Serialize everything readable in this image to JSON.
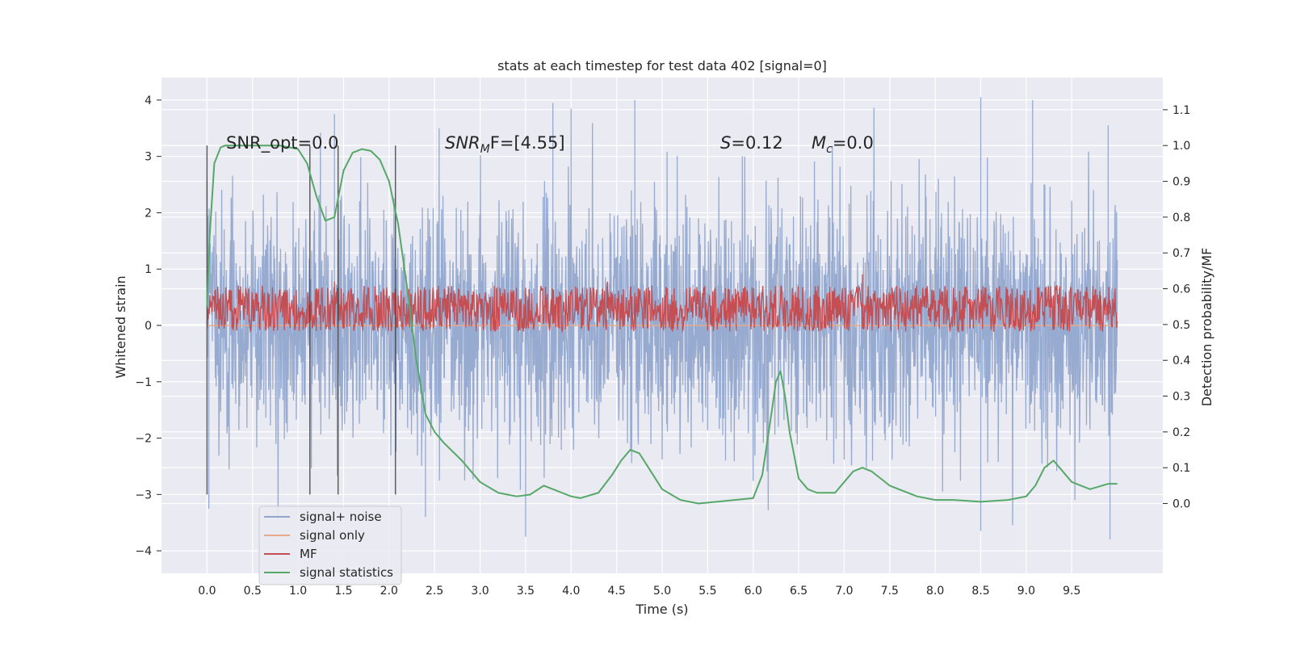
{
  "chart_data": {
    "type": "line",
    "title": "stats at each timestep for test data 402 [signal=0]",
    "xlabel": "Time (s)",
    "ylabel_left": "Whitened strain",
    "ylabel_right": "Detection probability/MF",
    "xlim": [
      -0.5,
      10.5
    ],
    "ylim_left": [
      -4.4,
      4.4
    ],
    "ylim_right": [
      -0.195,
      1.19
    ],
    "grid": true,
    "legend_position": "lower-left",
    "x_ticks": [
      "0.0",
      "0.5",
      "1.0",
      "1.5",
      "2.0",
      "2.5",
      "3.0",
      "3.5",
      "4.0",
      "4.5",
      "5.0",
      "5.5",
      "6.0",
      "6.5",
      "7.0",
      "7.5",
      "8.0",
      "8.5",
      "9.0",
      "9.5"
    ],
    "left_ticks": [
      "4",
      "3",
      "2",
      "1",
      "0",
      "−1",
      "−2",
      "−3",
      "−4"
    ],
    "right_ticks": [
      "1.1",
      "1.0",
      "0.9",
      "0.8",
      "0.7",
      "0.6",
      "0.5",
      "0.4",
      "0.3",
      "0.2",
      "0.1",
      "0.0"
    ],
    "annotations": {
      "snr_opt": "SNR_opt=0.0",
      "snr_mf_sym": "SNR",
      "snr_mf_sub": "M",
      "snr_mf_rest": "F=[4.55]",
      "s_sym": "S",
      "s_rest": "=0.12",
      "mc_sym": "M",
      "mc_sub": "c",
      "mc_rest": "=0.0"
    },
    "vertical_markers": [
      0.0,
      1.13,
      1.44,
      2.07
    ],
    "series": [
      {
        "name": "signal+ noise",
        "color": "#92a6cd",
        "axis": "left",
        "style": "dense noise",
        "x_range": [
          0.0,
          10.0
        ],
        "approx_range": [
          -3.8,
          4.05
        ],
        "peaks": [
          {
            "x": 1.4,
            "y": 3.75
          },
          {
            "x": 2.55,
            "y": 3.5
          },
          {
            "x": 3.8,
            "y": 3.95
          },
          {
            "x": 4.0,
            "y": 3.85
          },
          {
            "x": 4.7,
            "y": 4.0
          },
          {
            "x": 8.5,
            "y": 4.05
          },
          {
            "x": 9.07,
            "y": 4.0
          },
          {
            "x": 9.9,
            "y": 3.55
          }
        ],
        "troughs": [
          {
            "x": 0.02,
            "y": -3.25
          },
          {
            "x": 2.4,
            "y": -3.4
          },
          {
            "x": 3.5,
            "y": -3.75
          },
          {
            "x": 8.5,
            "y": -3.65
          },
          {
            "x": 9.92,
            "y": -3.8
          }
        ]
      },
      {
        "name": "signal only",
        "color": "#e8a98a",
        "axis": "left",
        "style": "flat",
        "value": 0.0
      },
      {
        "name": "MF",
        "color": "#c44e52",
        "axis": "right",
        "style": "noisy band",
        "x_range": [
          0.0,
          10.0
        ],
        "band": [
          0.48,
          0.61
        ],
        "spikes": [
          {
            "x": 7.2,
            "y": 0.64
          },
          {
            "x": 4.4,
            "y": 0.62
          },
          {
            "x": 1.4,
            "y": 0.62
          }
        ]
      },
      {
        "name": "signal statistics",
        "color": "#55a868",
        "axis": "right",
        "style": "smooth",
        "x": [
          0.0,
          0.03,
          0.08,
          0.15,
          0.2,
          0.3,
          0.5,
          0.8,
          1.0,
          1.1,
          1.2,
          1.3,
          1.4,
          1.5,
          1.6,
          1.7,
          1.8,
          1.9,
          2.0,
          2.1,
          2.2,
          2.3,
          2.4,
          2.5,
          2.6,
          2.8,
          3.0,
          3.2,
          3.4,
          3.55,
          3.7,
          3.8,
          3.9,
          4.0,
          4.1,
          4.3,
          4.45,
          4.55,
          4.65,
          4.75,
          4.85,
          5.0,
          5.2,
          5.4,
          5.6,
          5.8,
          6.0,
          6.1,
          6.2,
          6.25,
          6.3,
          6.35,
          6.4,
          6.5,
          6.6,
          6.7,
          6.9,
          7.0,
          7.1,
          7.2,
          7.3,
          7.5,
          7.8,
          8.0,
          8.2,
          8.5,
          8.8,
          9.0,
          9.1,
          9.2,
          9.3,
          9.5,
          9.7,
          9.9,
          10.0
        ],
        "y": [
          0.55,
          0.75,
          0.95,
          0.995,
          1.0,
          1.0,
          1.0,
          1.0,
          0.99,
          0.95,
          0.86,
          0.79,
          0.8,
          0.93,
          0.98,
          0.99,
          0.985,
          0.96,
          0.9,
          0.78,
          0.6,
          0.4,
          0.25,
          0.2,
          0.17,
          0.12,
          0.06,
          0.03,
          0.02,
          0.025,
          0.05,
          0.04,
          0.03,
          0.02,
          0.015,
          0.03,
          0.08,
          0.12,
          0.15,
          0.14,
          0.1,
          0.04,
          0.01,
          0.0,
          0.005,
          0.01,
          0.015,
          0.08,
          0.25,
          0.34,
          0.37,
          0.3,
          0.2,
          0.07,
          0.04,
          0.03,
          0.03,
          0.06,
          0.09,
          0.1,
          0.09,
          0.05,
          0.02,
          0.01,
          0.01,
          0.005,
          0.01,
          0.02,
          0.05,
          0.1,
          0.12,
          0.06,
          0.04,
          0.055,
          0.055
        ]
      }
    ]
  }
}
